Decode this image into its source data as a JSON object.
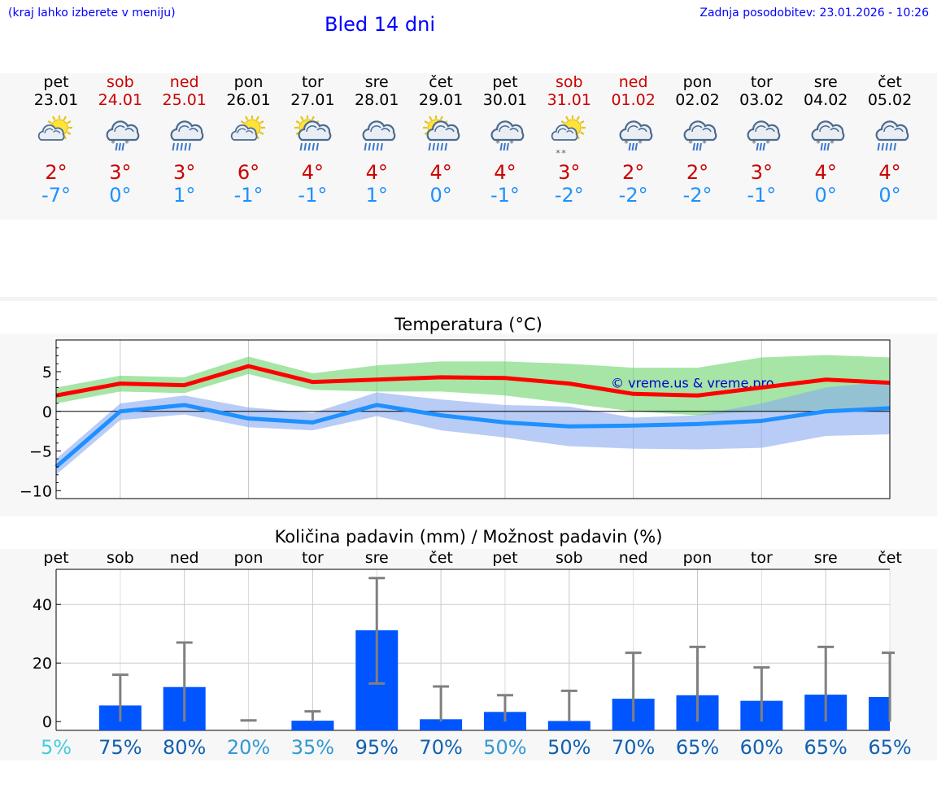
{
  "header": {
    "hint": "(kraj lahko izberete v meniju)",
    "title": "Bled 14 dni",
    "updated": "Zadnja posodobitev: 23.01.2026 - 10:26"
  },
  "colors": {
    "max_temp": "#cc0000",
    "min_temp": "#1e90ff",
    "weekend": "#cc0000",
    "weekday": "#000000",
    "precip_bar": "#0055ff"
  },
  "days": [
    {
      "name": "pet",
      "date": "23.01",
      "weekend": false,
      "icon": "sun-cloud-icon",
      "max": "2°",
      "min": "-7°"
    },
    {
      "name": "sob",
      "date": "24.01",
      "weekend": true,
      "icon": "cloud-snow-rain-icon",
      "max": "3°",
      "min": "0°"
    },
    {
      "name": "ned",
      "date": "25.01",
      "weekend": true,
      "icon": "cloud-rain-icon",
      "max": "3°",
      "min": "1°"
    },
    {
      "name": "pon",
      "date": "26.01",
      "weekend": false,
      "icon": "sun-cloud-icon",
      "max": "6°",
      "min": "-1°"
    },
    {
      "name": "tor",
      "date": "27.01",
      "weekend": false,
      "icon": "sun-cloud-rain-icon",
      "max": "4°",
      "min": "-1°"
    },
    {
      "name": "sre",
      "date": "28.01",
      "weekend": false,
      "icon": "cloud-rain-icon",
      "max": "4°",
      "min": "1°"
    },
    {
      "name": "čet",
      "date": "29.01",
      "weekend": false,
      "icon": "sun-cloud-rain-icon",
      "max": "4°",
      "min": "0°"
    },
    {
      "name": "pet",
      "date": "30.01",
      "weekend": false,
      "icon": "cloud-snow-rain-icon",
      "max": "4°",
      "min": "-1°"
    },
    {
      "name": "sob",
      "date": "31.01",
      "weekend": true,
      "icon": "sun-cloud-snow-icon",
      "max": "3°",
      "min": "-2°"
    },
    {
      "name": "ned",
      "date": "01.02",
      "weekend": true,
      "icon": "cloud-snow-rain-icon",
      "max": "2°",
      "min": "-2°"
    },
    {
      "name": "pon",
      "date": "02.02",
      "weekend": false,
      "icon": "cloud-snow-rain-icon",
      "max": "2°",
      "min": "-2°"
    },
    {
      "name": "tor",
      "date": "03.02",
      "weekend": false,
      "icon": "cloud-snow-rain-icon",
      "max": "3°",
      "min": "-1°"
    },
    {
      "name": "sre",
      "date": "04.02",
      "weekend": false,
      "icon": "cloud-snow-rain-icon",
      "max": "4°",
      "min": "0°"
    },
    {
      "name": "čet",
      "date": "05.02",
      "weekend": false,
      "icon": "cloud-rain-icon",
      "max": "4°",
      "min": "0°"
    }
  ],
  "chart_data": [
    {
      "type": "line",
      "title": "Temperatura (°C)",
      "watermark": "© vreme.us & vreme.pro",
      "ylim": [
        -11,
        9
      ],
      "yticks": [
        5,
        0,
        -5,
        -10
      ],
      "ytick_labels": [
        "5",
        "0",
        "−5",
        "−10"
      ],
      "x": [
        0,
        1,
        2,
        3,
        4,
        5,
        6,
        7,
        8,
        9,
        10,
        11,
        12,
        13
      ],
      "series": [
        {
          "name": "max",
          "color": "#ff0000",
          "values": [
            2,
            3.5,
            3.3,
            5.7,
            3.7,
            4,
            4.3,
            4.2,
            3.5,
            2.2,
            2,
            3,
            4,
            3.6
          ]
        },
        {
          "name": "min",
          "color": "#1e90ff",
          "values": [
            -7,
            0,
            0.8,
            -0.9,
            -1.4,
            0.8,
            -0.5,
            -1.4,
            -1.9,
            -1.8,
            -1.6,
            -1.2,
            0,
            0.4
          ]
        }
      ],
      "bands": [
        {
          "name": "max_range",
          "color": "#6ad36a",
          "low": [
            1,
            2.5,
            2.3,
            4.7,
            2.7,
            2.5,
            2.5,
            2,
            1,
            0,
            -0.5,
            0,
            0.2,
            0.5
          ],
          "high": [
            3,
            4.5,
            4.3,
            6.9,
            4.8,
            5.8,
            6.3,
            6.3,
            6,
            5.5,
            5.5,
            6.8,
            7.1,
            6.8
          ]
        },
        {
          "name": "min_range",
          "color": "#8aaaf0",
          "low": [
            -8,
            -1.1,
            -0.4,
            -2,
            -2.4,
            -0.6,
            -2.4,
            -3.3,
            -4.4,
            -4.7,
            -4.8,
            -4.6,
            -3.1,
            -2.9
          ],
          "high": [
            -6,
            1,
            2,
            0.5,
            -0.2,
            2.4,
            1.5,
            0.8,
            0.6,
            -0.8,
            -0.5,
            1,
            3,
            3.8
          ]
        }
      ]
    },
    {
      "type": "bar",
      "title": "Količina padavin (mm) / Možnost padavin (%)",
      "ylim": [
        -3,
        52
      ],
      "yticks": [
        40,
        20,
        0
      ],
      "ytick_labels": [
        "40",
        "20",
        "0"
      ],
      "categories": [
        "pet",
        "sob",
        "ned",
        "pon",
        "tor",
        "sre",
        "čet",
        "pet",
        "sob",
        "ned",
        "pon",
        "tor",
        "sre",
        "čet"
      ],
      "values": [
        0,
        5.5,
        11.8,
        0,
        0.3,
        31.2,
        0.8,
        3.3,
        0.2,
        7.8,
        9,
        7.1,
        9.2,
        8.4
      ],
      "error_high": [
        null,
        16,
        27,
        0.4,
        3.5,
        49,
        12,
        9,
        10.5,
        23.5,
        25.5,
        18.5,
        25.5,
        23.5
      ],
      "error_low": [
        null,
        0,
        0,
        0,
        0,
        13,
        0,
        0,
        0,
        0,
        0,
        0,
        0,
        0
      ],
      "probability": [
        {
          "label": "5%",
          "color": "#44ccdd"
        },
        {
          "label": "75%",
          "color": "#1060b0"
        },
        {
          "label": "80%",
          "color": "#1060b0"
        },
        {
          "label": "20%",
          "color": "#3399d0"
        },
        {
          "label": "35%",
          "color": "#3399d0"
        },
        {
          "label": "95%",
          "color": "#1060b0"
        },
        {
          "label": "70%",
          "color": "#1060b0"
        },
        {
          "label": "50%",
          "color": "#3399d0"
        },
        {
          "label": "50%",
          "color": "#1060b0"
        },
        {
          "label": "70%",
          "color": "#1060b0"
        },
        {
          "label": "65%",
          "color": "#1060b0"
        },
        {
          "label": "60%",
          "color": "#1060b0"
        },
        {
          "label": "65%",
          "color": "#1060b0"
        },
        {
          "label": "65%",
          "color": "#1060b0"
        }
      ]
    }
  ]
}
